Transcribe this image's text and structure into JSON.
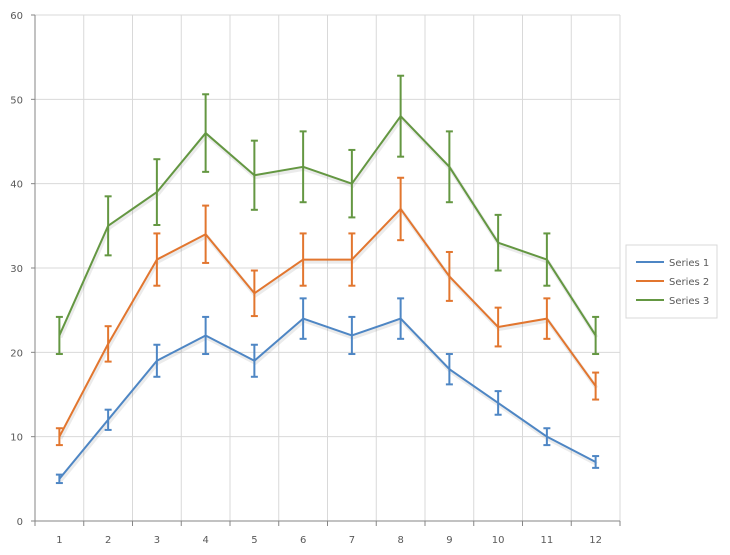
{
  "chart_data": {
    "type": "line",
    "title": "",
    "xlabel": "",
    "ylabel": "",
    "categories": [
      "1",
      "2",
      "3",
      "4",
      "5",
      "6",
      "7",
      "8",
      "9",
      "10",
      "11",
      "12"
    ],
    "ylim": [
      0,
      60
    ],
    "yticks": [
      "0",
      "10",
      "20",
      "30",
      "40",
      "50",
      "60"
    ],
    "grid": true,
    "legend_position": "right",
    "error_bars": "10% of value",
    "series": [
      {
        "name": "Series 1",
        "color": "#4E86C4",
        "values": [
          5,
          12,
          19,
          22,
          19,
          24,
          22,
          24,
          18,
          14,
          10,
          7
        ]
      },
      {
        "name": "Series 2",
        "color": "#E2762F",
        "values": [
          10,
          21,
          31,
          34,
          27,
          31,
          31,
          37,
          29,
          23,
          24,
          16
        ]
      },
      {
        "name": "Series 3",
        "color": "#649742",
        "values": [
          22,
          35,
          39,
          46,
          41,
          42,
          40,
          48,
          42,
          33,
          31,
          22
        ]
      }
    ]
  }
}
